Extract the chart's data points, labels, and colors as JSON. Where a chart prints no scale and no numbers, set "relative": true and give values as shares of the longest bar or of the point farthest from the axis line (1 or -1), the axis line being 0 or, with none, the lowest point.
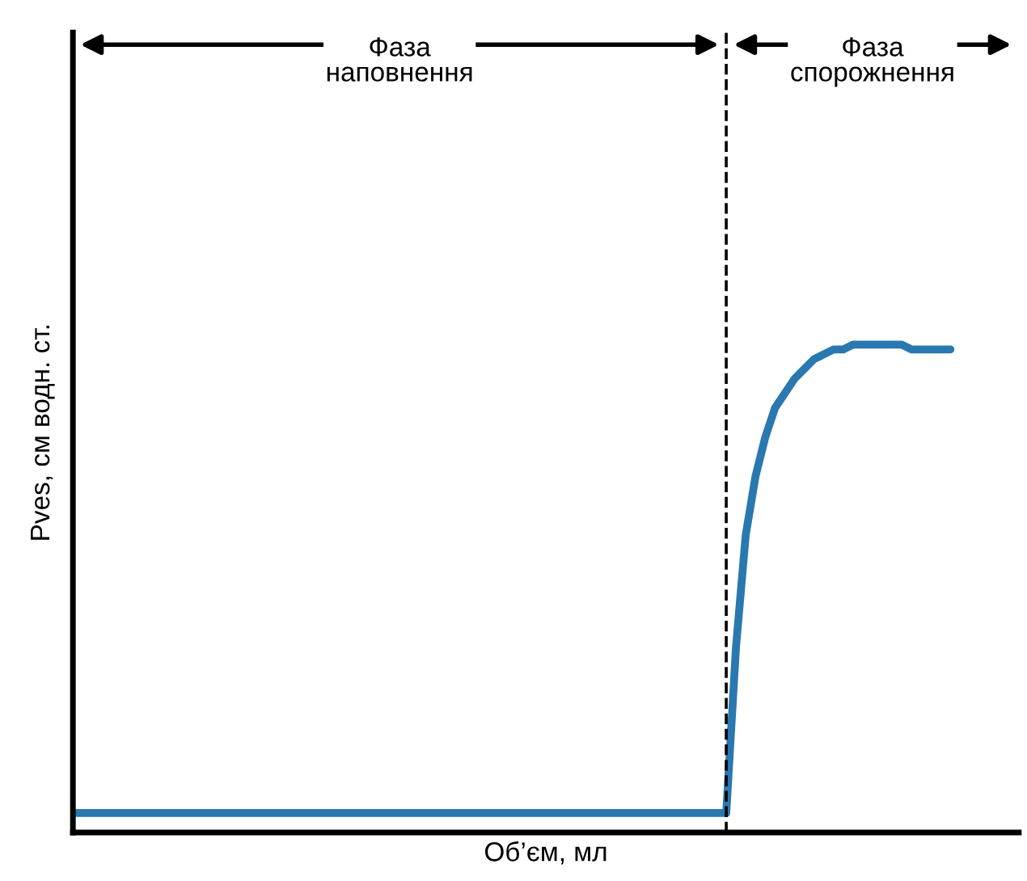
{
  "chart_data": {
    "type": "line",
    "relative": true,
    "xlabel": "Об’єм, мл",
    "ylabel": "Pves, см водн. ст.",
    "annotations": [
      "Фаза\nнаповнення",
      "Фаза\nспорожнення"
    ],
    "categories": [
      null,
      null,
      null,
      null,
      null,
      null,
      null,
      null,
      null,
      null,
      null,
      null,
      null,
      null,
      null,
      null,
      null,
      null,
      null,
      null,
      null,
      null,
      null,
      null,
      null,
      null,
      null,
      null,
      null,
      null,
      null,
      null,
      null,
      null,
      null,
      null,
      null,
      null,
      null,
      null,
      null,
      null,
      null,
      null,
      null,
      null,
      null,
      null,
      null,
      null,
      null,
      null,
      null,
      null,
      null,
      null,
      null,
      null,
      null,
      null,
      null,
      null,
      null,
      null,
      null,
      null,
      null,
      null,
      null,
      null,
      null,
      null,
      null,
      null,
      null,
      null,
      null,
      null,
      null,
      null,
      null,
      null,
      null,
      null,
      null,
      null,
      null,
      null,
      null,
      null,
      null,
      null,
      null,
      null,
      null,
      null,
      null,
      null
    ],
    "series": [
      {
        "color": "#2a78b0",
        "values": [
          0.04,
          0.04,
          0.04,
          0.04,
          0.04,
          0.04,
          0.04,
          0.04,
          0.04,
          0.04,
          0.04,
          0.04,
          0.04,
          0.04,
          0.04,
          0.04,
          0.04,
          0.04,
          0.04,
          0.04,
          0.04,
          0.04,
          0.04,
          0.04,
          0.04,
          0.04,
          0.04,
          0.04,
          0.04,
          0.04,
          0.04,
          0.04,
          0.04,
          0.04,
          0.04,
          0.04,
          0.04,
          0.04,
          0.04,
          0.04,
          0.04,
          0.04,
          0.04,
          0.04,
          0.04,
          0.04,
          0.04,
          0.04,
          0.04,
          0.04,
          0.04,
          0.04,
          0.04,
          0.04,
          0.04,
          0.04,
          0.04,
          0.04,
          0.04,
          0.04,
          0.04,
          0.04,
          0.04,
          0.04,
          0.04,
          0.04,
          0.04,
          0.04,
          0.38,
          0.61,
          0.73,
          0.81,
          0.87,
          0.9,
          0.93,
          0.95,
          0.97,
          0.98,
          0.99,
          0.99,
          1.0,
          1.0,
          1.0,
          1.0,
          1.0,
          1.0,
          0.99,
          0.99,
          0.99,
          0.99,
          0.99,
          null,
          null,
          null,
          null,
          null,
          null,
          null
        ]
      }
    ]
  }
}
